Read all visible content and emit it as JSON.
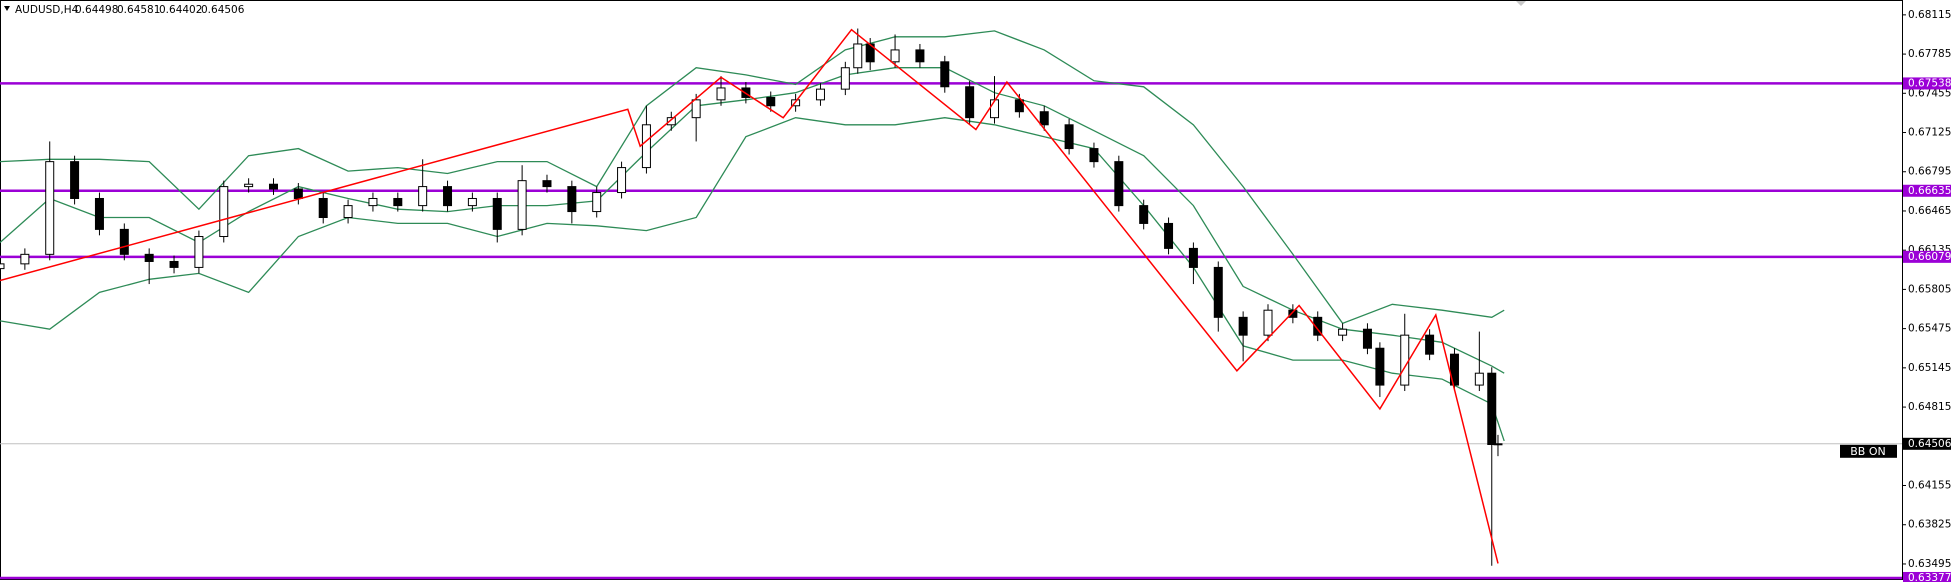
{
  "chart_data": {
    "type": "candlestick",
    "title": "AUDUSD,H4",
    "x": [
      0,
      4,
      8,
      12,
      16,
      20,
      24,
      28,
      32,
      36,
      40,
      44,
      48,
      52,
      56,
      60,
      64,
      68,
      72,
      76,
      80,
      84,
      88,
      92,
      96,
      100,
      104,
      108,
      112,
      116,
      120,
      124,
      128,
      132,
      136,
      138,
      140,
      144,
      148,
      152,
      156,
      160,
      164,
      168,
      172,
      176,
      180,
      184,
      188,
      192,
      196,
      200,
      204,
      208,
      212,
      216,
      220,
      222,
      226,
      230,
      234,
      238,
      240,
      241
    ],
    "open": [
      0.6598,
      0.6602,
      0.661,
      0.6688,
      0.6657,
      0.6631,
      0.661,
      0.6604,
      0.6599,
      0.6625,
      0.6667,
      0.6669,
      0.6665,
      0.6657,
      0.6641,
      0.6651,
      0.6657,
      0.6651,
      0.6667,
      0.6651,
      0.6657,
      0.6631,
      0.6672,
      0.6667,
      0.6646,
      0.6662,
      0.6683,
      0.6719,
      0.6725,
      0.674,
      0.675,
      0.6742,
      0.6735,
      0.674,
      0.6749,
      0.6767,
      0.6787,
      0.6772,
      0.6782,
      0.6772,
      0.6751,
      0.6725,
      0.674,
      0.673,
      0.6719,
      0.6699,
      0.6688,
      0.6651,
      0.6636,
      0.6615,
      0.6599,
      0.6557,
      0.6542,
      0.6563,
      0.6557,
      0.6542,
      0.6547,
      0.6531,
      0.65,
      0.6542,
      0.6526,
      0.65,
      0.651,
      0.64498
    ],
    "high": [
      0.6607,
      0.6615,
      0.6705,
      0.6693,
      0.6662,
      0.6636,
      0.6615,
      0.6609,
      0.663,
      0.6672,
      0.6674,
      0.6674,
      0.667,
      0.6662,
      0.6656,
      0.6662,
      0.6662,
      0.669,
      0.6672,
      0.6662,
      0.6662,
      0.6685,
      0.6677,
      0.6672,
      0.6667,
      0.6688,
      0.6735,
      0.673,
      0.6745,
      0.676,
      0.6755,
      0.6747,
      0.6745,
      0.6754,
      0.6772,
      0.68,
      0.6792,
      0.6795,
      0.6787,
      0.6777,
      0.6756,
      0.676,
      0.6745,
      0.6735,
      0.6724,
      0.6704,
      0.6693,
      0.6656,
      0.6641,
      0.662,
      0.6604,
      0.6562,
      0.6568,
      0.6568,
      0.6562,
      0.6552,
      0.6552,
      0.6536,
      0.656,
      0.6547,
      0.6531,
      0.6545,
      0.6515,
      0.64581
    ],
    "low": [
      0.6593,
      0.6597,
      0.6605,
      0.6652,
      0.6626,
      0.6605,
      0.6585,
      0.6594,
      0.6594,
      0.662,
      0.6662,
      0.666,
      0.6652,
      0.6636,
      0.6636,
      0.6646,
      0.6646,
      0.6646,
      0.6646,
      0.6646,
      0.662,
      0.6626,
      0.6662,
      0.6636,
      0.6641,
      0.6657,
      0.6678,
      0.6714,
      0.6705,
      0.6735,
      0.6737,
      0.673,
      0.673,
      0.6735,
      0.6744,
      0.6762,
      0.6765,
      0.6767,
      0.6767,
      0.6746,
      0.672,
      0.672,
      0.6725,
      0.6714,
      0.6694,
      0.6683,
      0.6646,
      0.6631,
      0.661,
      0.6585,
      0.6545,
      0.652,
      0.6537,
      0.6552,
      0.6537,
      0.6537,
      0.6526,
      0.649,
      0.6495,
      0.6521,
      0.6495,
      0.6495,
      0.6348,
      0.64402
    ],
    "close": [
      0.6602,
      0.661,
      0.6688,
      0.6657,
      0.6631,
      0.661,
      0.6604,
      0.6599,
      0.6625,
      0.6667,
      0.6669,
      0.6665,
      0.6657,
      0.6641,
      0.6651,
      0.6657,
      0.6651,
      0.6667,
      0.6651,
      0.6657,
      0.6631,
      0.6672,
      0.6667,
      0.6646,
      0.6662,
      0.6683,
      0.6719,
      0.6725,
      0.674,
      0.675,
      0.6742,
      0.6735,
      0.674,
      0.6749,
      0.6767,
      0.6787,
      0.6772,
      0.6782,
      0.6772,
      0.6751,
      0.6725,
      0.674,
      0.673,
      0.6719,
      0.6699,
      0.6688,
      0.6651,
      0.6636,
      0.6615,
      0.6599,
      0.6557,
      0.6542,
      0.6563,
      0.6557,
      0.6542,
      0.6547,
      0.6531,
      0.65,
      0.6542,
      0.6526,
      0.65,
      0.651,
      0.645,
      0.64506
    ],
    "color_up": "#ffffff",
    "color_down": "#000000",
    "xlim": [
      0,
      306
    ],
    "ylim": [
      0.6336,
      0.6824
    ],
    "yticks": [
      0.68115,
      0.67785,
      0.67455,
      0.67125,
      0.66795,
      0.66465,
      0.66135,
      0.65805,
      0.65475,
      0.65145,
      0.64815,
      0.64155,
      0.63825,
      0.63495
    ],
    "bands": {
      "color": "#2e8b57",
      "x": [
        0,
        8,
        16,
        24,
        32,
        40,
        48,
        56,
        64,
        72,
        80,
        88,
        96,
        104,
        112,
        120,
        128,
        136,
        144,
        152,
        160,
        168,
        176,
        184,
        192,
        200,
        208,
        216,
        224,
        232,
        240,
        242
      ],
      "upper": [
        0.6688,
        0.669,
        0.669,
        0.6688,
        0.6648,
        0.6693,
        0.6699,
        0.668,
        0.6683,
        0.6678,
        0.6688,
        0.6688,
        0.6667,
        0.6735,
        0.6767,
        0.6761,
        0.6753,
        0.6782,
        0.6793,
        0.6793,
        0.6798,
        0.6782,
        0.6756,
        0.6751,
        0.6719,
        0.6667,
        0.661,
        0.6552,
        0.6568,
        0.6563,
        0.6557,
        0.6563
      ],
      "middle": [
        0.662,
        0.6657,
        0.6641,
        0.6641,
        0.662,
        0.6646,
        0.6667,
        0.6657,
        0.6648,
        0.6646,
        0.6651,
        0.6651,
        0.6655,
        0.6696,
        0.6735,
        0.674,
        0.6746,
        0.6761,
        0.6767,
        0.6767,
        0.6746,
        0.6735,
        0.6714,
        0.6693,
        0.6651,
        0.6583,
        0.6563,
        0.6547,
        0.6542,
        0.6536,
        0.6516,
        0.651
      ],
      "lower": [
        0.6554,
        0.6547,
        0.6578,
        0.6589,
        0.6594,
        0.6578,
        0.6625,
        0.6641,
        0.6636,
        0.6636,
        0.6625,
        0.6636,
        0.6634,
        0.663,
        0.6641,
        0.6709,
        0.6725,
        0.6719,
        0.6719,
        0.6725,
        0.6719,
        0.6709,
        0.6699,
        0.6651,
        0.6599,
        0.6533,
        0.6521,
        0.6521,
        0.651,
        0.6505,
        0.6484,
        0.6453
      ]
    },
    "zigzag": {
      "color": "#ff0000",
      "x": [
        0,
        101,
        103,
        116,
        126,
        137,
        157,
        162,
        199,
        209,
        222,
        231,
        241
      ],
      "values": [
        0.6588,
        0.6732,
        0.6701,
        0.6759,
        0.6725,
        0.6799,
        0.6715,
        0.6755,
        0.6512,
        0.6567,
        0.648,
        0.6559,
        0.635
      ]
    },
    "levels": [
      0.67538,
      0.66635,
      0.66079,
      0.63377
    ],
    "level_color": "#9b00d6",
    "indicator_label": "BB ON"
  }
}
